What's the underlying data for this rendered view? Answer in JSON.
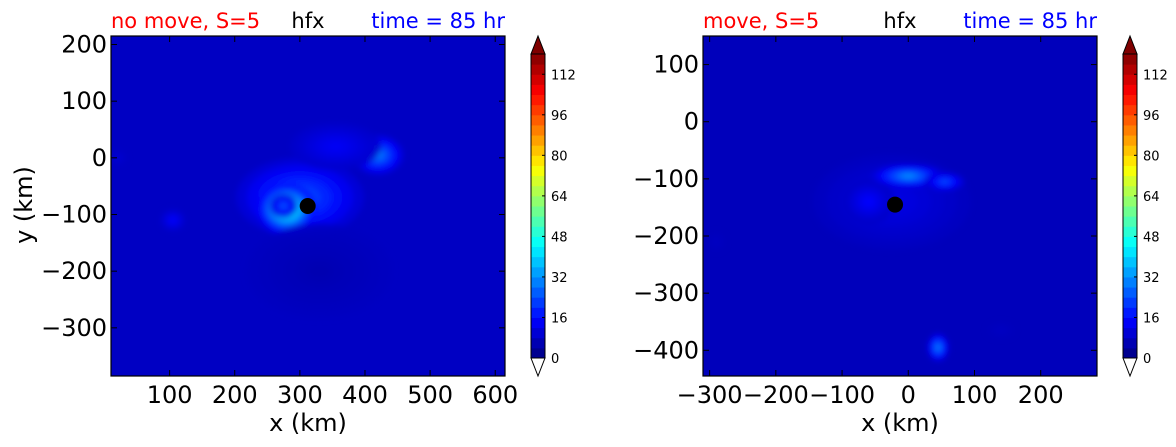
{
  "colors": {
    "left_title": "#ff0000",
    "center_title": "#000000",
    "right_title": "#0000ff",
    "marker": "#000000",
    "frame": "#000000",
    "jet_stops": [
      "#00007f",
      "#0000ff",
      "#007fff",
      "#00ffff",
      "#7fff7f",
      "#ffff00",
      "#ff7f00",
      "#ff0000",
      "#7f0000"
    ]
  },
  "chart_data": [
    {
      "type": "heatmap",
      "variable": "hfx",
      "title_left": "no move, S=5",
      "title_center": "hfx",
      "title_right": "time = 85 hr",
      "xlabel": "x (km)",
      "ylabel": "y (km)",
      "xlim": [
        10,
        615
      ],
      "ylim": [
        -385,
        215
      ],
      "xticks": [
        100,
        200,
        300,
        400,
        500,
        600
      ],
      "yticks": [
        -300,
        -200,
        -100,
        0,
        100,
        200
      ],
      "colorbar": {
        "min": 0,
        "max": 120,
        "ticks": [
          0,
          16,
          32,
          48,
          64,
          80,
          96,
          112
        ],
        "extend": "both"
      },
      "background_value": 8,
      "features": [
        {
          "x": 300,
          "y": -70,
          "sx": 70,
          "sy": 50,
          "value": 25
        },
        {
          "x": 280,
          "y": -90,
          "sx": 32,
          "sy": 32,
          "value": 52
        },
        {
          "x": 275,
          "y": -85,
          "sx": 15,
          "sy": 15,
          "value": 25
        },
        {
          "x": 420,
          "y": 5,
          "sx": 28,
          "sy": 25,
          "value": 30
        },
        {
          "x": 355,
          "y": 20,
          "sx": 50,
          "sy": 30,
          "value": 14
        },
        {
          "x": 105,
          "y": -110,
          "sx": 14,
          "sy": 14,
          "value": 15
        },
        {
          "x": 20,
          "y": 0,
          "sx": 10,
          "sy": 10,
          "value": 10
        },
        {
          "x": 330,
          "y": -200,
          "sx": 80,
          "sy": 60,
          "value": 6
        }
      ],
      "center_marker": {
        "x": 312,
        "y": -85
      }
    },
    {
      "type": "heatmap",
      "variable": "hfx",
      "title_left": "move, S=5",
      "title_center": "hfx",
      "title_right": "time = 85 hr",
      "xlabel": "x (km)",
      "ylabel": "",
      "xlim": [
        -310,
        285
      ],
      "ylim": [
        -445,
        150
      ],
      "xticks": [
        -300,
        -200,
        -100,
        0,
        100,
        200
      ],
      "yticks": [
        -400,
        -300,
        -200,
        -100,
        0,
        100
      ],
      "colorbar": {
        "min": 0,
        "max": 120,
        "ticks": [
          0,
          16,
          32,
          48,
          64,
          80,
          96,
          112
        ],
        "extend": "both"
      },
      "background_value": 7,
      "features": [
        {
          "x": -25,
          "y": -140,
          "sx": 85,
          "sy": 60,
          "value": 12
        },
        {
          "x": -60,
          "y": -140,
          "sx": 28,
          "sy": 28,
          "value": 15
        },
        {
          "x": 0,
          "y": -95,
          "sx": 40,
          "sy": 15,
          "value": 32
        },
        {
          "x": 55,
          "y": -105,
          "sx": 22,
          "sy": 12,
          "value": 24
        },
        {
          "x": 45,
          "y": -395,
          "sx": 12,
          "sy": 18,
          "value": 30
        },
        {
          "x": -290,
          "y": -210,
          "sx": 10,
          "sy": 12,
          "value": 8
        },
        {
          "x": 140,
          "y": -365,
          "sx": 15,
          "sy": 10,
          "value": 8
        }
      ],
      "center_marker": {
        "x": -20,
        "y": -145
      }
    }
  ]
}
